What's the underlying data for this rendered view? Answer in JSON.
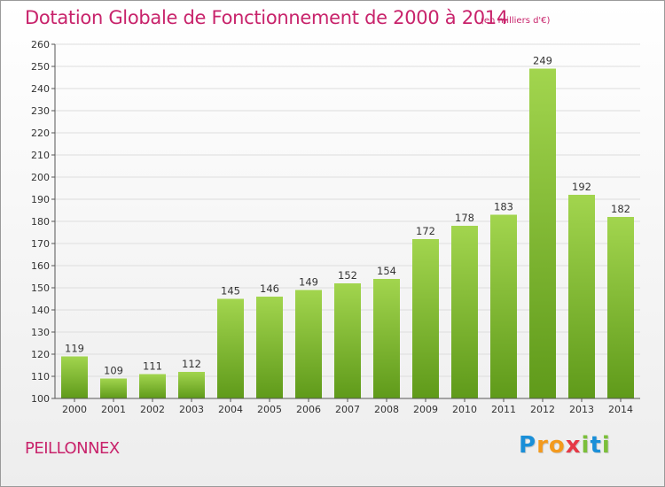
{
  "header": {
    "title": "Dotation Globale de Fonctionnement de 2000 à 2014",
    "unit": "(en milliers d'€)"
  },
  "footer": {
    "commune": "PEILLONNEX",
    "logo_text": "Proxiti",
    "logo_letters": [
      {
        "ch": "P",
        "color": "#1a8fd8"
      },
      {
        "ch": "r",
        "color": "#f39a1e"
      },
      {
        "ch": "o",
        "color": "#f39a1e"
      },
      {
        "ch": "x",
        "color": "#e63946"
      },
      {
        "ch": "i",
        "color": "#7bbf3a"
      },
      {
        "ch": "t",
        "color": "#1a8fd8"
      },
      {
        "ch": "i",
        "color": "#7bbf3a"
      }
    ]
  },
  "colors": {
    "title": "#c8236b",
    "bar_top": "#a2d54e",
    "bar_bottom": "#5f9a1a",
    "grid": "#dddddd",
    "axis": "#555555"
  },
  "chart_data": {
    "type": "bar",
    "title": "Dotation Globale de Fonctionnement de 2000 à 2014",
    "subtitle": "(en milliers d'€)",
    "categories": [
      "2000",
      "2001",
      "2002",
      "2003",
      "2004",
      "2005",
      "2006",
      "2007",
      "2008",
      "2009",
      "2010",
      "2011",
      "2012",
      "2013",
      "2014"
    ],
    "values": [
      119,
      109,
      111,
      112,
      145,
      146,
      149,
      152,
      154,
      172,
      178,
      183,
      249,
      192,
      182
    ],
    "ylim": [
      100,
      260
    ],
    "ytick_step": 10,
    "grid": true,
    "legend": "none"
  }
}
